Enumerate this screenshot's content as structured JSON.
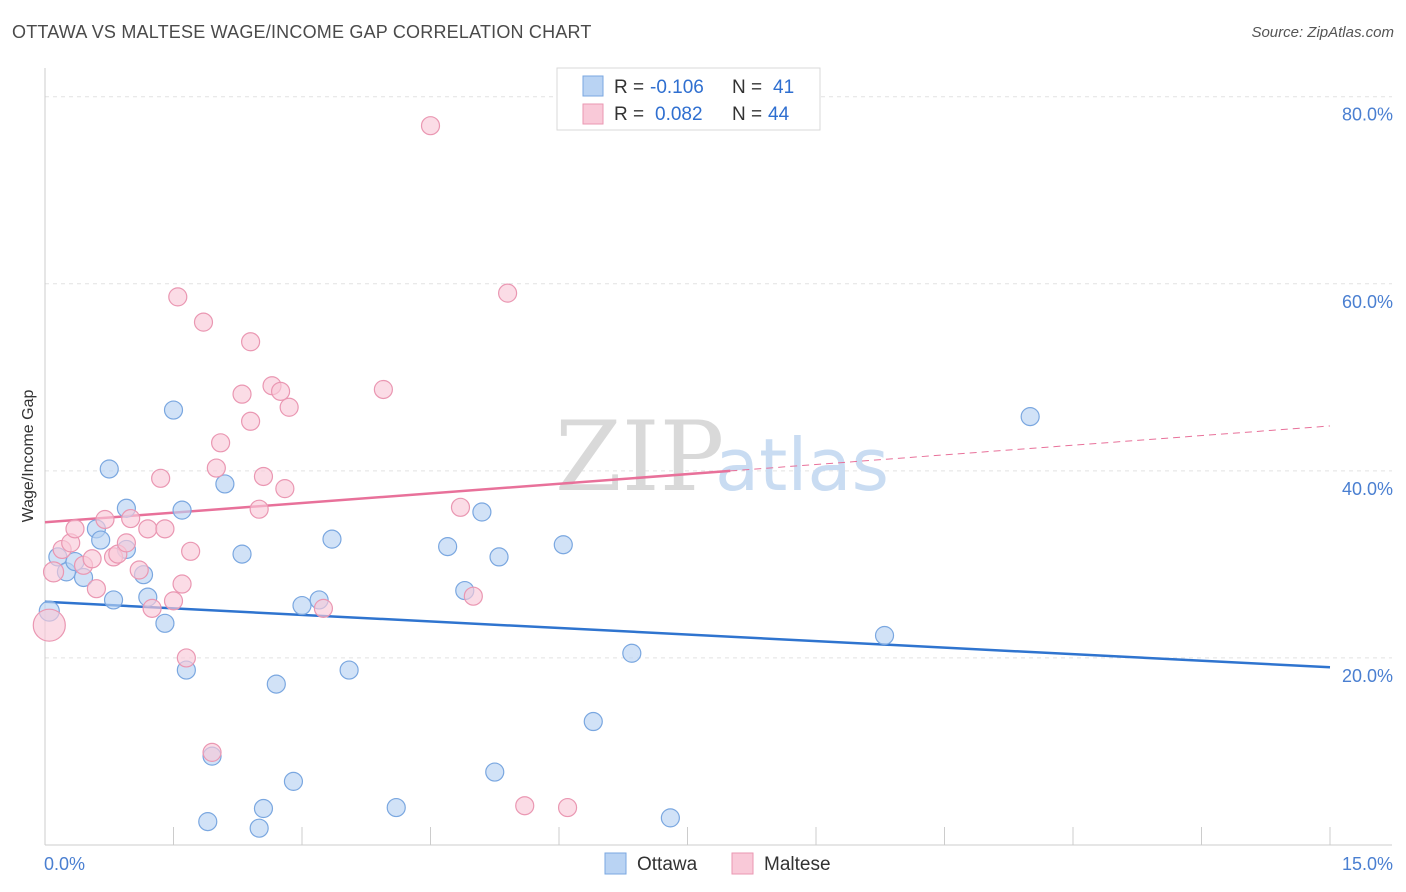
{
  "title": "OTTAWA VS MALTESE WAGE/INCOME GAP CORRELATION CHART",
  "source": "Source: ZipAtlas.com",
  "watermark": {
    "zip": "ZIP",
    "atlas": "atlas"
  },
  "colors": {
    "ottawa_fill": "#b9d3f3",
    "ottawa_stroke": "#7aa7e0",
    "ottawa_line": "#2f74cf",
    "maltese_fill": "#f9c9d8",
    "maltese_stroke": "#ea97b2",
    "maltese_line": "#e8719a",
    "grid": "#e2e2e2",
    "tick_label": "#4a7fd1"
  },
  "legend": {
    "rows": [
      {
        "r_label": "R =",
        "r_value": "-0.106",
        "n_label": "N =",
        "n_value": "41"
      },
      {
        "r_label": "R =",
        "r_value": "0.082",
        "n_label": "N =",
        "n_value": "44"
      }
    ]
  },
  "bottom_legend": [
    "Ottawa",
    "Maltese"
  ],
  "chart_data": {
    "type": "scatter",
    "title": "OTTAWA VS MALTESE WAGE/INCOME GAP CORRELATION CHART",
    "xlabel": "",
    "ylabel": "Wage/Income Gap",
    "xlim": [
      0,
      15
    ],
    "ylim": [
      0,
      82
    ],
    "x_tick_labels": [
      {
        "value": 0,
        "label": "0.0%"
      },
      {
        "value": 15,
        "label": "15.0%"
      }
    ],
    "y_tick_labels": [
      {
        "value": 20,
        "label": "20.0%"
      },
      {
        "value": 40,
        "label": "40.0%"
      },
      {
        "value": 60,
        "label": "60.0%"
      },
      {
        "value": 80,
        "label": "80.0%"
      }
    ],
    "series": [
      {
        "name": "Ottawa",
        "r": -0.106,
        "n": 41,
        "trend": {
          "x0": 0,
          "y0": 26.0,
          "x1": 15,
          "y1": 19.0,
          "dashed_from": null
        },
        "points": [
          [
            0.05,
            25.0,
            10
          ],
          [
            0.15,
            30.8,
            9
          ],
          [
            0.25,
            29.2,
            9
          ],
          [
            0.35,
            30.3,
            9
          ],
          [
            0.45,
            28.6,
            9
          ],
          [
            0.6,
            33.8,
            9
          ],
          [
            0.65,
            32.6,
            9
          ],
          [
            0.75,
            40.2,
            9
          ],
          [
            0.95,
            36.0,
            9
          ],
          [
            0.8,
            26.2,
            9
          ],
          [
            0.95,
            31.6,
            9
          ],
          [
            1.15,
            28.9,
            9
          ],
          [
            1.2,
            26.5,
            9
          ],
          [
            1.4,
            23.7,
            9
          ],
          [
            1.5,
            46.5,
            9
          ],
          [
            1.6,
            35.8,
            9
          ],
          [
            1.65,
            18.7,
            9
          ],
          [
            1.9,
            2.5,
            9
          ],
          [
            1.95,
            9.5,
            9
          ],
          [
            2.1,
            38.6,
            9
          ],
          [
            2.3,
            31.1,
            9
          ],
          [
            2.5,
            1.8,
            9
          ],
          [
            2.55,
            3.9,
            9
          ],
          [
            2.7,
            17.2,
            9
          ],
          [
            2.9,
            6.8,
            9
          ],
          [
            3.0,
            25.6,
            9
          ],
          [
            3.2,
            26.2,
            9
          ],
          [
            3.35,
            32.7,
            9
          ],
          [
            3.55,
            18.7,
            9
          ],
          [
            4.1,
            4.0,
            9
          ],
          [
            4.7,
            31.9,
            9
          ],
          [
            4.9,
            27.2,
            9
          ],
          [
            5.1,
            35.6,
            9
          ],
          [
            5.25,
            7.8,
            9
          ],
          [
            5.3,
            30.8,
            9
          ],
          [
            6.05,
            32.1,
            9
          ],
          [
            6.4,
            13.2,
            9
          ],
          [
            6.85,
            20.5,
            9
          ],
          [
            7.3,
            2.9,
            9
          ],
          [
            9.8,
            22.4,
            9
          ],
          [
            11.5,
            45.8,
            9
          ]
        ]
      },
      {
        "name": "Maltese",
        "r": 0.082,
        "n": 44,
        "trend": {
          "x0": 0,
          "y0": 34.5,
          "x1": 15,
          "y1": 44.8,
          "dashed_from": 8.0
        },
        "points": [
          [
            0.05,
            23.5,
            16
          ],
          [
            0.1,
            29.2,
            10
          ],
          [
            0.2,
            31.6,
            9
          ],
          [
            0.3,
            32.3,
            9
          ],
          [
            0.35,
            33.8,
            9
          ],
          [
            0.45,
            29.9,
            9
          ],
          [
            0.55,
            30.6,
            9
          ],
          [
            0.6,
            27.4,
            9
          ],
          [
            0.7,
            34.8,
            9
          ],
          [
            0.8,
            30.8,
            9
          ],
          [
            0.85,
            31.1,
            9
          ],
          [
            0.95,
            32.3,
            9
          ],
          [
            1.0,
            34.9,
            9
          ],
          [
            1.1,
            29.4,
            9
          ],
          [
            1.2,
            33.8,
            9
          ],
          [
            1.25,
            25.3,
            9
          ],
          [
            1.35,
            39.2,
            9
          ],
          [
            1.4,
            33.8,
            9
          ],
          [
            1.5,
            26.1,
            9
          ],
          [
            1.55,
            58.6,
            9
          ],
          [
            1.6,
            27.9,
            9
          ],
          [
            1.65,
            20.0,
            9
          ],
          [
            1.7,
            31.4,
            9
          ],
          [
            1.85,
            55.9,
            9
          ],
          [
            1.95,
            9.9,
            9
          ],
          [
            2.0,
            40.3,
            9
          ],
          [
            2.05,
            43.0,
            9
          ],
          [
            2.3,
            48.2,
            9
          ],
          [
            2.4,
            45.3,
            9
          ],
          [
            2.4,
            53.8,
            9
          ],
          [
            2.5,
            35.9,
            9
          ],
          [
            2.55,
            39.4,
            9
          ],
          [
            2.65,
            49.1,
            9
          ],
          [
            2.75,
            48.5,
            9
          ],
          [
            2.8,
            38.1,
            9
          ],
          [
            2.85,
            46.8,
            9
          ],
          [
            3.25,
            25.3,
            9
          ],
          [
            3.95,
            48.7,
            9
          ],
          [
            4.5,
            76.9,
            9
          ],
          [
            4.85,
            36.1,
            9
          ],
          [
            5.0,
            26.6,
            9
          ],
          [
            5.4,
            59.0,
            9
          ],
          [
            5.6,
            4.2,
            9
          ],
          [
            6.1,
            4.0,
            9
          ]
        ]
      }
    ]
  }
}
